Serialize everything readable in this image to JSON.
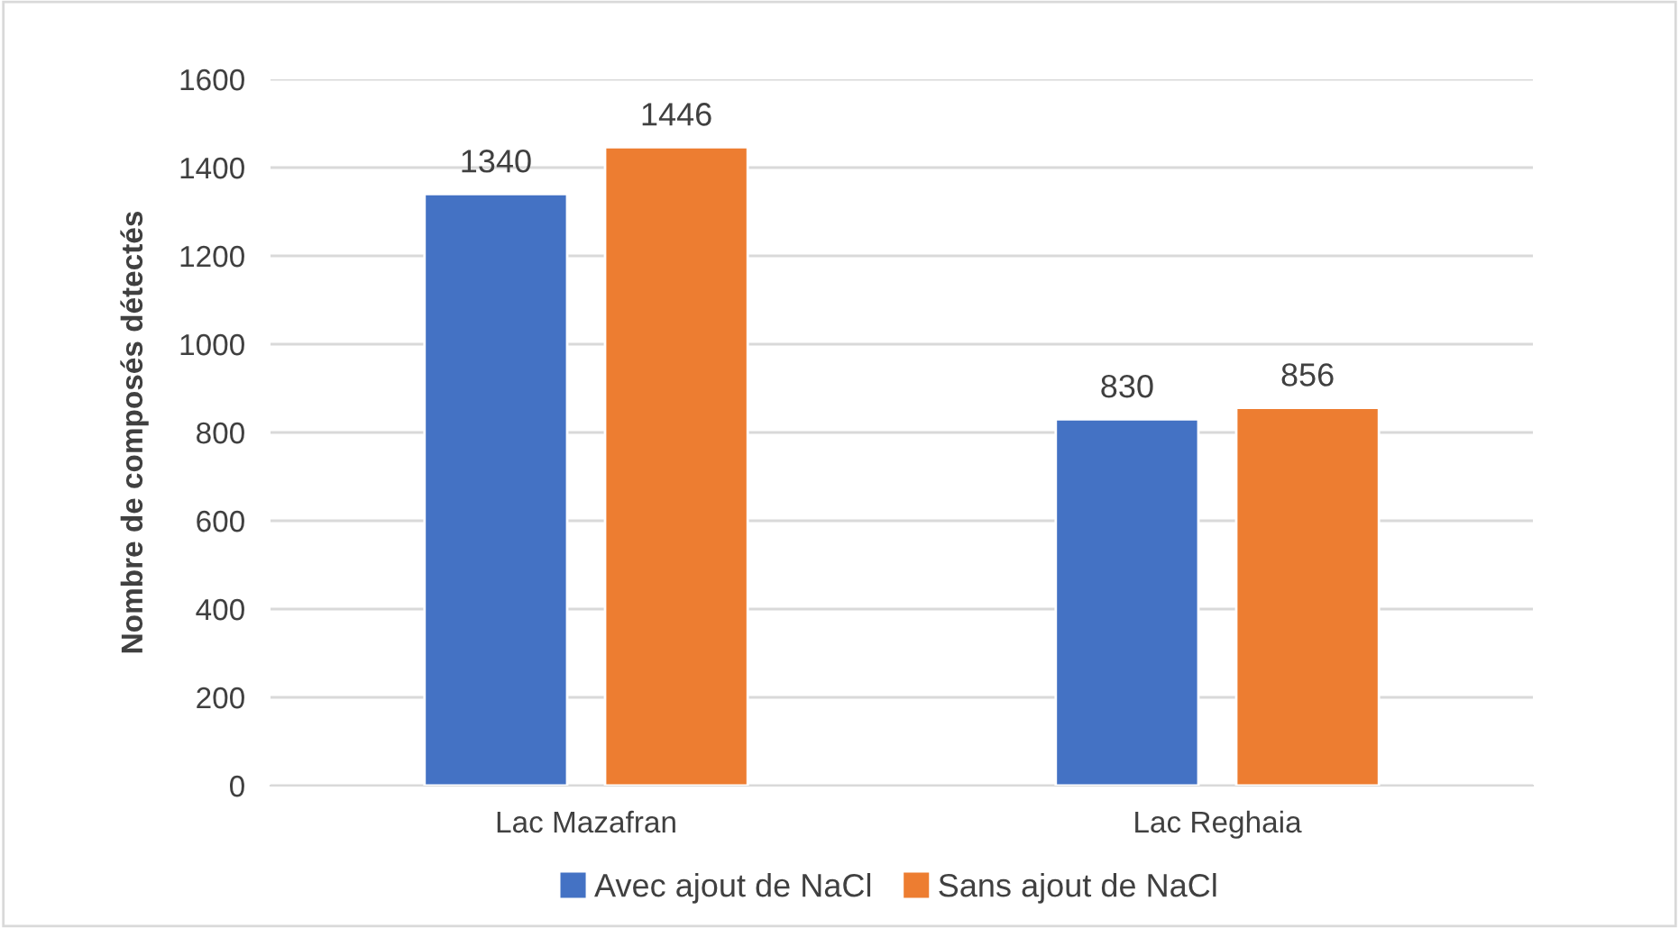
{
  "chart_data": {
    "type": "bar",
    "ylabel": "Nombre de composés détectés",
    "categories": [
      "Lac Mazafran",
      "Lac Reghaia"
    ],
    "series": [
      {
        "name": "Avec ajout de NaCl",
        "color": "#4472c4",
        "values": [
          1340,
          830
        ]
      },
      {
        "name": "Sans ajout de NaCl",
        "color": "#ed7d31",
        "values": [
          1446,
          856
        ]
      }
    ],
    "ylim": [
      0,
      1600
    ],
    "yticks": [
      0,
      200,
      400,
      600,
      800,
      1000,
      1200,
      1400,
      1600
    ],
    "grid": "y",
    "legend": "bottom",
    "data_labels": true
  }
}
